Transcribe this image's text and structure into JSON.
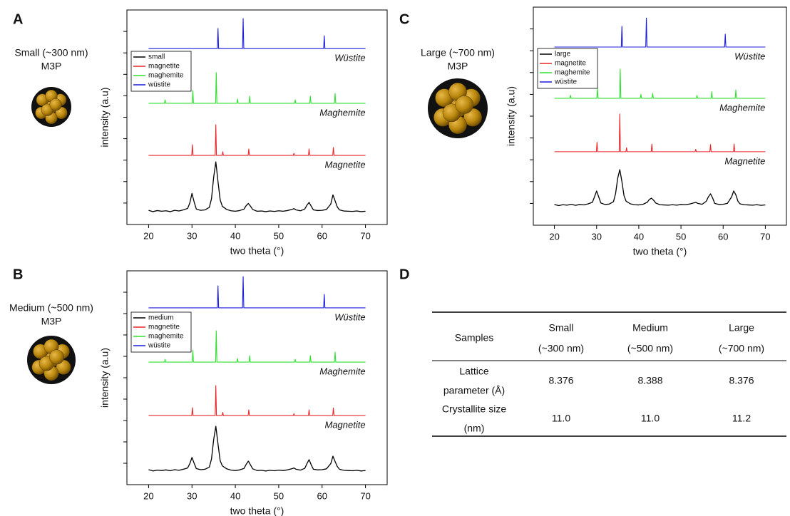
{
  "chart_data": [
    {
      "type": "line",
      "panel": "A",
      "sample": "Small (~300 nm)",
      "particle": "M3P",
      "xlabel": "two theta (°)",
      "ylabel": "intensity (a.u)",
      "xlim": [
        15,
        75
      ],
      "xticks": [
        20,
        30,
        40,
        50,
        60,
        70
      ],
      "ylim": [
        0,
        10
      ],
      "yticks": [
        1,
        2,
        3,
        4,
        5,
        6,
        7,
        8,
        9
      ],
      "legend": "upper left",
      "grid": false,
      "series": [
        {
          "name": "small",
          "color": "#000000",
          "x": [
            20,
            21,
            22,
            23,
            24,
            25,
            26,
            27,
            28,
            29,
            29.5,
            30,
            30.5,
            31,
            32,
            33,
            34,
            34.5,
            35,
            35.5,
            36,
            36.5,
            37,
            38,
            39,
            40,
            41,
            42,
            42.5,
            43,
            43.5,
            44,
            45,
            46,
            47,
            48,
            49,
            50,
            51,
            52,
            53,
            53.5,
            54,
            55,
            56,
            56.5,
            57,
            57.5,
            58,
            59,
            60,
            61,
            62,
            62.5,
            63,
            63.5,
            64,
            65,
            66,
            67,
            68,
            69,
            70
          ],
          "values": [
            0.66,
            0.6,
            0.65,
            0.62,
            0.64,
            0.6,
            0.66,
            0.63,
            0.68,
            0.75,
            1.0,
            1.45,
            1.05,
            0.72,
            0.66,
            0.68,
            0.8,
            1.2,
            2.2,
            2.92,
            2.0,
            1.15,
            0.85,
            0.7,
            0.64,
            0.62,
            0.65,
            0.72,
            0.88,
            0.98,
            0.85,
            0.7,
            0.62,
            0.63,
            0.6,
            0.63,
            0.61,
            0.64,
            0.62,
            0.65,
            0.7,
            0.74,
            0.68,
            0.64,
            0.72,
            0.9,
            1.03,
            0.85,
            0.68,
            0.65,
            0.66,
            0.7,
            0.95,
            1.38,
            1.1,
            0.82,
            0.68,
            0.63,
            0.62,
            0.61,
            0.63,
            0.6,
            0.62
          ]
        },
        {
          "name": "magnetite",
          "color": "#e8262a",
          "annotation": "Magnetite",
          "x": [
            20,
            29.95,
            30.1,
            30.25,
            35.35,
            35.5,
            35.65,
            36.95,
            37.1,
            37.25,
            42.95,
            43.1,
            43.25,
            53.35,
            53.5,
            53.65,
            56.85,
            57.0,
            57.15,
            62.45,
            62.6,
            62.75,
            70
          ],
          "values": [
            3.22,
            3.22,
            3.72,
            3.22,
            3.22,
            4.65,
            3.22,
            3.22,
            3.39,
            3.22,
            3.22,
            3.52,
            3.22,
            3.22,
            3.32,
            3.22,
            3.22,
            3.52,
            3.22,
            3.22,
            3.59,
            3.22,
            3.22
          ]
        },
        {
          "name": "maghemite",
          "color": "#2fe02f",
          "annotation": "Maghemite",
          "x": [
            20,
            23.65,
            23.8,
            23.95,
            30.05,
            30.2,
            30.35,
            35.45,
            35.6,
            35.75,
            40.35,
            40.5,
            40.65,
            43.15,
            43.3,
            43.45,
            53.65,
            53.8,
            53.95,
            57.15,
            57.3,
            57.45,
            62.85,
            63.0,
            63.15,
            70
          ],
          "values": [
            5.65,
            5.65,
            5.81,
            5.65,
            5.65,
            6.25,
            5.65,
            5.65,
            7.08,
            5.65,
            5.65,
            5.85,
            5.65,
            5.65,
            5.98,
            5.65,
            5.65,
            5.81,
            5.65,
            5.65,
            5.98,
            5.65,
            5.65,
            6.11,
            5.65,
            5.65
          ]
        },
        {
          "name": "wüstite",
          "color": "#1c1cdc",
          "annotation": "Wüstite",
          "x": [
            20,
            35.85,
            36.0,
            36.15,
            41.65,
            41.8,
            41.95,
            60.35,
            60.5,
            60.65,
            70
          ],
          "values": [
            8.2,
            8.2,
            9.14,
            8.2,
            8.2,
            9.6,
            8.2,
            8.2,
            8.8,
            8.2,
            8.2
          ]
        }
      ]
    },
    {
      "type": "line",
      "panel": "B",
      "sample": "Medium (~500 nm)",
      "particle": "M3P",
      "xlabel": "two theta (°)",
      "ylabel": "intensity (a.u)",
      "xlim": [
        15,
        75
      ],
      "xticks": [
        20,
        30,
        40,
        50,
        60,
        70
      ],
      "ylim": [
        0,
        10
      ],
      "yticks": [
        1,
        2,
        3,
        4,
        5,
        6,
        7,
        8,
        9
      ],
      "legend": "upper left",
      "grid": false,
      "series": [
        {
          "name": "medium",
          "color": "#000000",
          "x": [
            20,
            21,
            22,
            23,
            24,
            25,
            26,
            27,
            28,
            29,
            29.5,
            30,
            30.5,
            31,
            32,
            33,
            34,
            34.5,
            35,
            35.5,
            36,
            36.5,
            37,
            38,
            39,
            40,
            41,
            42,
            42.5,
            43,
            43.5,
            44,
            45,
            46,
            47,
            48,
            49,
            50,
            51,
            52,
            53,
            53.5,
            54,
            55,
            56,
            56.5,
            57,
            57.5,
            58,
            59,
            60,
            61,
            62,
            62.5,
            63,
            63.5,
            64,
            65,
            66,
            67,
            68,
            69,
            70
          ],
          "values": [
            0.7,
            0.64,
            0.68,
            0.66,
            0.69,
            0.65,
            0.7,
            0.67,
            0.72,
            0.78,
            0.98,
            1.27,
            1.0,
            0.75,
            0.7,
            0.72,
            0.82,
            1.2,
            2.1,
            2.73,
            1.9,
            1.12,
            0.88,
            0.74,
            0.68,
            0.66,
            0.69,
            0.76,
            0.95,
            1.1,
            0.92,
            0.74,
            0.66,
            0.67,
            0.64,
            0.67,
            0.65,
            0.68,
            0.66,
            0.69,
            0.74,
            0.78,
            0.72,
            0.68,
            0.76,
            0.98,
            1.17,
            0.92,
            0.72,
            0.69,
            0.7,
            0.74,
            0.98,
            1.33,
            1.08,
            0.85,
            0.72,
            0.67,
            0.66,
            0.65,
            0.67,
            0.64,
            0.66
          ]
        },
        {
          "name": "magnetite",
          "color": "#e8262a",
          "annotation": "Magnetite",
          "x": [
            20,
            29.95,
            30.1,
            30.25,
            35.35,
            35.5,
            35.65,
            36.95,
            37.1,
            37.25,
            42.95,
            43.1,
            43.25,
            53.35,
            53.5,
            53.65,
            56.85,
            57.0,
            57.15,
            62.45,
            62.6,
            62.75,
            70
          ],
          "values": [
            3.23,
            3.23,
            3.6,
            3.23,
            3.23,
            4.63,
            3.23,
            3.23,
            3.38,
            3.23,
            3.23,
            3.5,
            3.23,
            3.23,
            3.32,
            3.23,
            3.23,
            3.5,
            3.23,
            3.23,
            3.58,
            3.23,
            3.23
          ]
        },
        {
          "name": "maghemite",
          "color": "#2fe02f",
          "annotation": "Maghemite",
          "x": [
            20,
            23.65,
            23.8,
            23.95,
            30.05,
            30.2,
            30.35,
            35.45,
            35.6,
            35.75,
            40.35,
            40.5,
            40.65,
            43.15,
            43.3,
            43.45,
            53.65,
            53.8,
            53.95,
            57.15,
            57.3,
            57.45,
            62.85,
            63.0,
            63.15,
            70
          ],
          "values": [
            5.73,
            5.73,
            5.86,
            5.73,
            5.73,
            6.28,
            5.73,
            5.73,
            7.2,
            5.73,
            5.73,
            5.9,
            5.73,
            5.73,
            6.03,
            5.73,
            5.73,
            5.86,
            5.73,
            5.73,
            6.03,
            5.73,
            5.73,
            6.2,
            5.73,
            5.73
          ]
        },
        {
          "name": "wüstite",
          "color": "#1c1cdc",
          "annotation": "Wüstite",
          "x": [
            20,
            35.85,
            36.0,
            36.15,
            41.65,
            41.8,
            41.95,
            60.35,
            60.5,
            60.65,
            70
          ],
          "values": [
            8.27,
            8.27,
            9.3,
            8.27,
            8.27,
            9.73,
            8.27,
            8.27,
            8.9,
            8.27,
            8.27
          ]
        }
      ]
    },
    {
      "type": "line",
      "panel": "C",
      "sample": "Large (~700 nm)",
      "particle": "M3P",
      "xlabel": "two theta (°)",
      "ylabel": "intensity (a.u)",
      "xlim": [
        15,
        75
      ],
      "xticks": [
        20,
        30,
        40,
        50,
        60,
        70
      ],
      "ylim": [
        0,
        10
      ],
      "yticks": [
        1,
        2,
        3,
        4,
        5,
        6,
        7,
        8,
        9
      ],
      "legend": "upper left",
      "grid": false,
      "series": [
        {
          "name": "large",
          "color": "#000000",
          "x": [
            20,
            21,
            22,
            23,
            24,
            25,
            26,
            27,
            28,
            29,
            29.5,
            30,
            30.5,
            31,
            32,
            33,
            34,
            34.5,
            35,
            35.5,
            36,
            36.5,
            37,
            38,
            39,
            40,
            41,
            42,
            42.5,
            43,
            43.5,
            44,
            45,
            46,
            47,
            48,
            49,
            50,
            51,
            52,
            53,
            53.5,
            54,
            55,
            56,
            56.5,
            57,
            57.5,
            58,
            59,
            60,
            61,
            62,
            62.5,
            63,
            63.5,
            64,
            65,
            66,
            67,
            68,
            69,
            70
          ],
          "values": [
            0.95,
            0.9,
            0.94,
            0.92,
            0.96,
            0.91,
            0.95,
            0.93,
            0.98,
            1.05,
            1.3,
            1.57,
            1.3,
            1.02,
            0.95,
            0.97,
            1.08,
            1.45,
            2.15,
            2.55,
            2.0,
            1.35,
            1.1,
            0.98,
            0.94,
            0.93,
            0.96,
            1.05,
            1.18,
            1.24,
            1.15,
            1.02,
            0.94,
            0.93,
            0.92,
            0.94,
            0.92,
            0.95,
            0.94,
            0.97,
            1.02,
            1.05,
            1.0,
            0.96,
            1.1,
            1.3,
            1.44,
            1.25,
            1.0,
            0.95,
            0.96,
            1.0,
            1.3,
            1.57,
            1.4,
            1.1,
            0.98,
            0.94,
            0.93,
            0.92,
            0.94,
            0.91,
            0.93
          ]
        },
        {
          "name": "magnetite",
          "color": "#e8262a",
          "annotation": "Magnetite",
          "x": [
            20,
            29.95,
            30.1,
            30.25,
            35.35,
            35.5,
            35.65,
            36.95,
            37.1,
            37.25,
            42.95,
            43.1,
            43.25,
            53.35,
            53.5,
            53.65,
            56.85,
            57.0,
            57.15,
            62.45,
            62.6,
            62.75,
            70
          ],
          "values": [
            3.37,
            3.37,
            3.8,
            3.37,
            3.37,
            5.1,
            3.37,
            3.37,
            3.55,
            3.37,
            3.37,
            3.72,
            3.37,
            3.37,
            3.48,
            3.37,
            3.37,
            3.7,
            3.37,
            3.37,
            3.72,
            3.37,
            3.37
          ]
        },
        {
          "name": "maghemite",
          "color": "#2fe02f",
          "annotation": "Maghemite",
          "x": [
            20,
            23.65,
            23.8,
            23.95,
            30.05,
            30.2,
            30.35,
            35.45,
            35.6,
            35.75,
            40.35,
            40.5,
            40.65,
            43.15,
            43.3,
            43.45,
            53.65,
            53.8,
            53.95,
            57.15,
            57.3,
            57.45,
            62.85,
            63.0,
            63.15,
            70
          ],
          "values": [
            5.82,
            5.82,
            5.96,
            5.82,
            5.82,
            6.28,
            5.82,
            5.82,
            7.16,
            5.82,
            5.82,
            6.0,
            5.82,
            5.82,
            6.05,
            5.82,
            5.82,
            5.95,
            5.82,
            5.82,
            6.12,
            5.82,
            5.82,
            6.2,
            5.82,
            5.82
          ]
        },
        {
          "name": "wüstite",
          "color": "#1c1cdc",
          "annotation": "Wüstite",
          "x": [
            20,
            35.85,
            36.0,
            36.15,
            41.65,
            41.8,
            41.95,
            60.35,
            60.5,
            60.65,
            70
          ],
          "values": [
            8.17,
            8.17,
            9.12,
            8.17,
            8.17,
            9.5,
            8.17,
            8.17,
            8.76,
            8.17,
            8.17
          ]
        }
      ]
    }
  ],
  "table": {
    "panel": "D",
    "header": [
      [
        "Samples"
      ],
      [
        "Small",
        "(~300 nm)"
      ],
      [
        "Medium",
        "(~500 nm)"
      ],
      [
        "Large",
        "(~700 nm)"
      ]
    ],
    "rows": [
      [
        [
          "Lattice",
          "parameter (Å)"
        ],
        "8.376",
        "8.388",
        "8.376"
      ],
      [
        [
          "Crystallite size",
          "(nm)"
        ],
        "11.0",
        "11.0",
        "11.2"
      ]
    ]
  }
}
